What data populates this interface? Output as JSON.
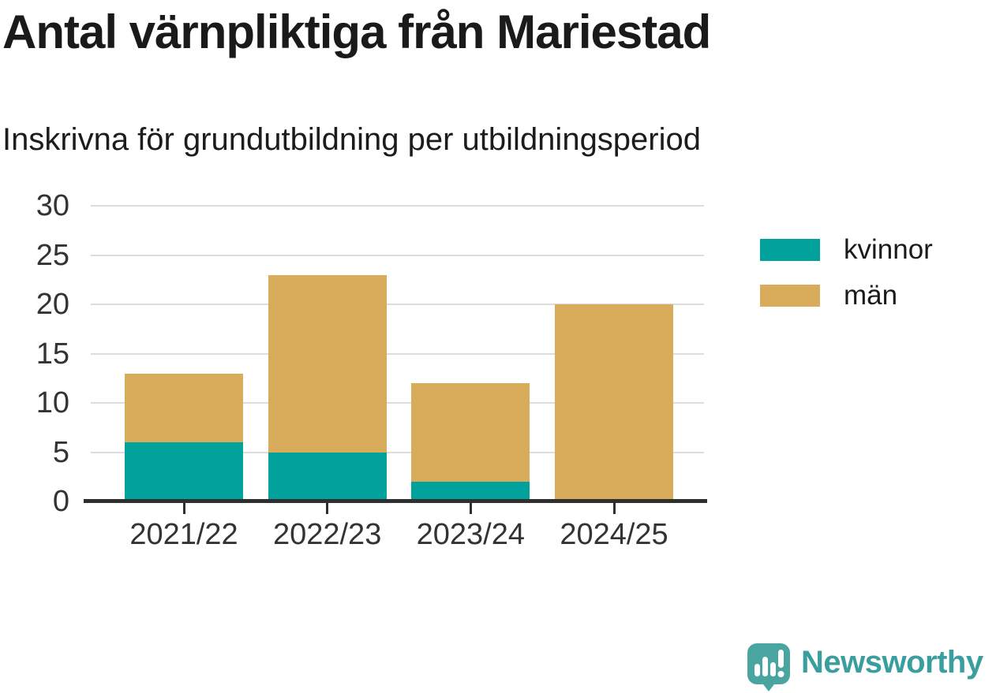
{
  "title": "Antal värnpliktiga från Mariestad",
  "subtitle": "Inskrivna för grundutbildning per utbildningsperiod",
  "chart_data": {
    "type": "bar",
    "stacked": true,
    "title": "Antal värnpliktiga från Mariestad",
    "subtitle": "Inskrivna för grundutbildning per utbildningsperiod",
    "categories": [
      "2021/22",
      "2022/23",
      "2023/24",
      "2024/25"
    ],
    "series": [
      {
        "name": "kvinnor",
        "color": "#00a29b",
        "values": [
          6,
          5,
          2,
          0
        ]
      },
      {
        "name": "män",
        "color": "#d9ac5c",
        "values": [
          7,
          18,
          10,
          20
        ]
      }
    ],
    "totals": [
      13,
      23,
      12,
      20
    ],
    "xlabel": "",
    "ylabel": "",
    "ylim": [
      0,
      30
    ],
    "y_ticks": [
      0,
      5,
      10,
      15,
      20,
      25,
      30
    ],
    "grid": "horizontal",
    "legend_position": "right"
  },
  "branding": {
    "wordmark": "Newsworthy",
    "wordmark_color": "#3b9e9e",
    "icon": "newsworthy-chart-bubble-icon",
    "icon_color": "#4aa5a1"
  },
  "colors": {
    "background": "#ffffff",
    "axis": "#2f2f2f",
    "gridline": "#dddddd",
    "title_text": "#1a1a1a",
    "tick_text": "#333333"
  }
}
